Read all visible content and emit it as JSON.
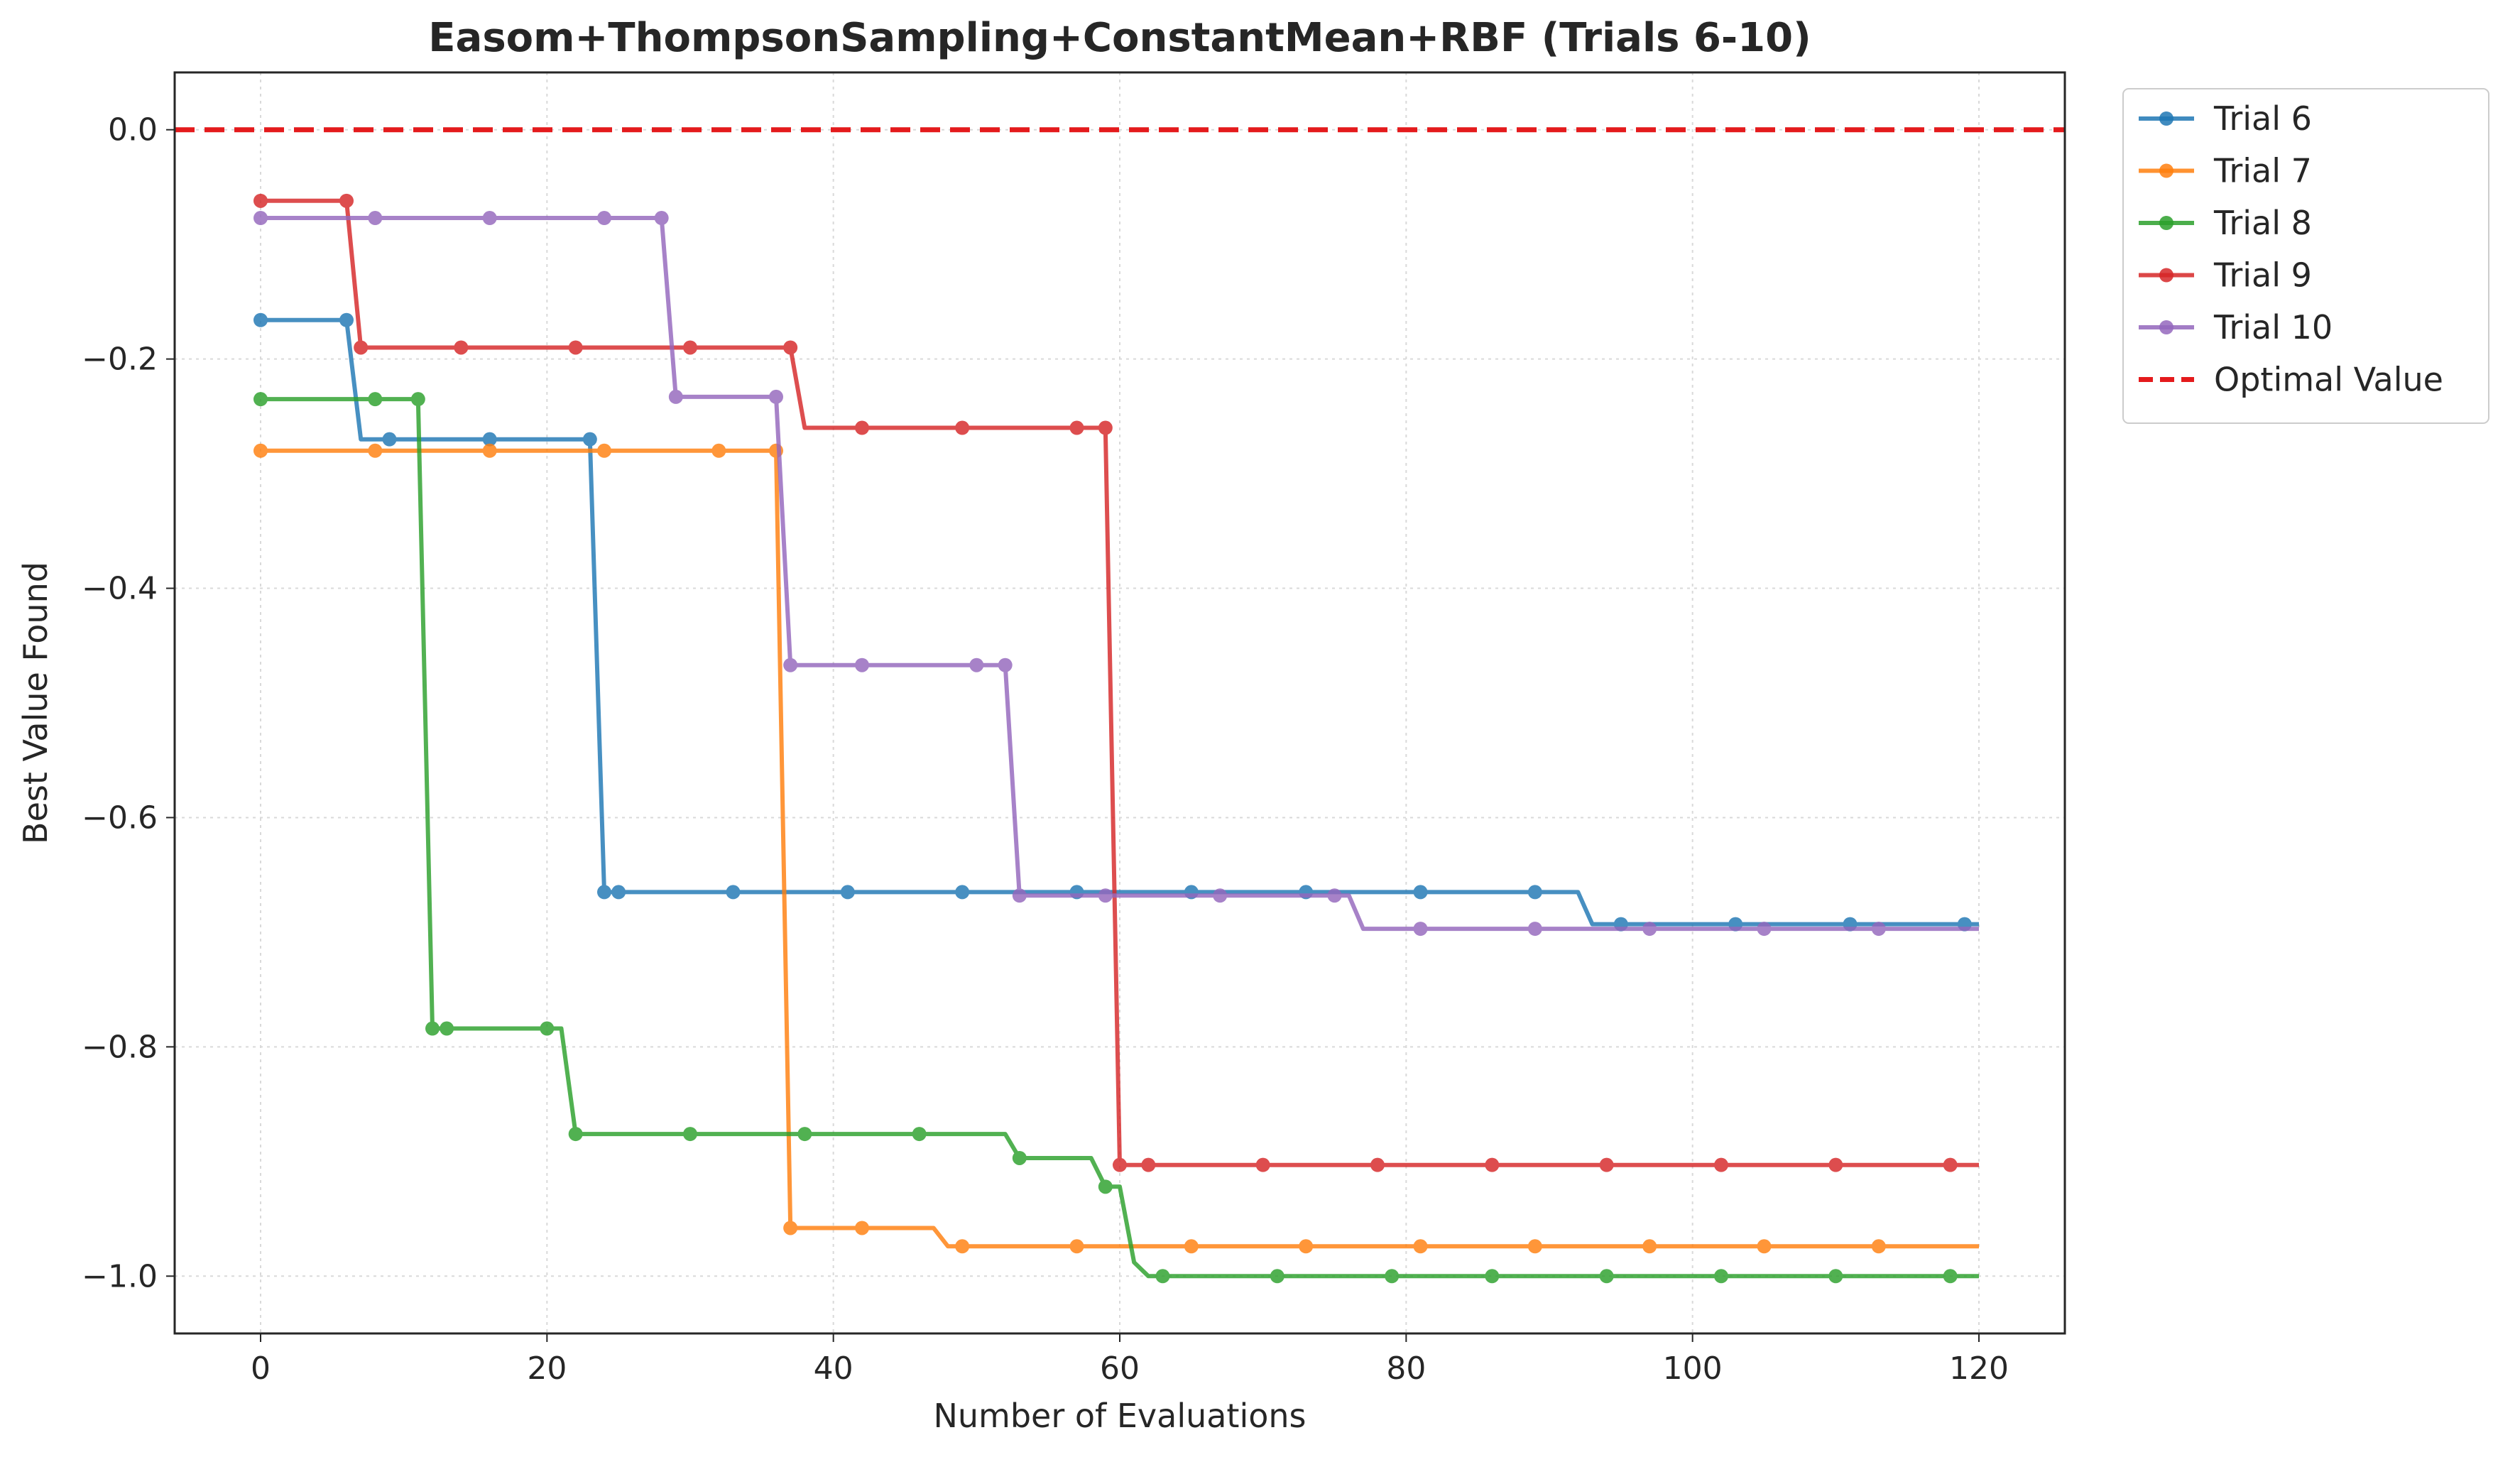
{
  "chart_data": {
    "type": "line",
    "title": "Easom+ThompsonSampling+ConstantMean+RBF (Trials 6-10)",
    "xlabel": "Number of Evaluations",
    "ylabel": "Best Value Found",
    "xlim": [
      -6,
      126
    ],
    "ylim": [
      -1.05,
      0.05
    ],
    "xticks": [
      0,
      20,
      40,
      60,
      80,
      100,
      120
    ],
    "xtick_labels": [
      "0",
      "20",
      "40",
      "60",
      "80",
      "100",
      "120"
    ],
    "yticks": [
      0.0,
      -0.2,
      -0.4,
      -0.6,
      -0.8,
      -1.0
    ],
    "ytick_labels": [
      "0.0",
      "−0.2",
      "−0.4",
      "−0.6",
      "−0.8",
      "−1.0"
    ],
    "grid": true,
    "legend_position": "outside-top-right",
    "reference_line": {
      "name": "Optimal Value",
      "y": 0.0,
      "color": "#e41a1c",
      "style": "dashed"
    },
    "series": [
      {
        "name": "Trial 6",
        "color": "#1f77b4",
        "steps": [
          [
            0,
            -0.166
          ],
          [
            6,
            -0.166
          ],
          [
            7,
            -0.27
          ],
          [
            23,
            -0.27
          ],
          [
            24,
            -0.665
          ],
          [
            92,
            -0.665
          ],
          [
            93,
            -0.693
          ],
          [
            120,
            -0.693
          ]
        ],
        "markers": [
          [
            0,
            -0.166
          ],
          [
            6,
            -0.166
          ],
          [
            9,
            -0.27
          ],
          [
            16,
            -0.27
          ],
          [
            23,
            -0.27
          ],
          [
            24,
            -0.665
          ],
          [
            25,
            -0.665
          ],
          [
            33,
            -0.665
          ],
          [
            41,
            -0.665
          ],
          [
            49,
            -0.665
          ],
          [
            57,
            -0.665
          ],
          [
            65,
            -0.665
          ],
          [
            73,
            -0.665
          ],
          [
            81,
            -0.665
          ],
          [
            89,
            -0.665
          ],
          [
            95,
            -0.693
          ],
          [
            103,
            -0.693
          ],
          [
            111,
            -0.693
          ],
          [
            119,
            -0.693
          ]
        ]
      },
      {
        "name": "Trial 7",
        "color": "#ff7f0e",
        "steps": [
          [
            0,
            -0.28
          ],
          [
            36,
            -0.28
          ],
          [
            37,
            -0.958
          ],
          [
            47,
            -0.958
          ],
          [
            48,
            -0.974
          ],
          [
            120,
            -0.974
          ]
        ],
        "markers": [
          [
            0,
            -0.28
          ],
          [
            8,
            -0.28
          ],
          [
            16,
            -0.28
          ],
          [
            24,
            -0.28
          ],
          [
            32,
            -0.28
          ],
          [
            36,
            -0.28
          ],
          [
            37,
            -0.958
          ],
          [
            42,
            -0.958
          ],
          [
            49,
            -0.974
          ],
          [
            57,
            -0.974
          ],
          [
            65,
            -0.974
          ],
          [
            73,
            -0.974
          ],
          [
            81,
            -0.974
          ],
          [
            89,
            -0.974
          ],
          [
            97,
            -0.974
          ],
          [
            105,
            -0.974
          ],
          [
            113,
            -0.974
          ]
        ]
      },
      {
        "name": "Trial 8",
        "color": "#2ca02c",
        "steps": [
          [
            0,
            -0.235
          ],
          [
            11,
            -0.235
          ],
          [
            12,
            -0.784
          ],
          [
            21,
            -0.784
          ],
          [
            22,
            -0.876
          ],
          [
            52,
            -0.876
          ],
          [
            53,
            -0.897
          ],
          [
            58,
            -0.897
          ],
          [
            59,
            -0.922
          ],
          [
            60,
            -0.922
          ],
          [
            61,
            -0.988
          ],
          [
            62,
            -1.0
          ],
          [
            120,
            -1.0
          ]
        ],
        "markers": [
          [
            0,
            -0.235
          ],
          [
            8,
            -0.235
          ],
          [
            11,
            -0.235
          ],
          [
            12,
            -0.784
          ],
          [
            13,
            -0.784
          ],
          [
            20,
            -0.784
          ],
          [
            22,
            -0.876
          ],
          [
            30,
            -0.876
          ],
          [
            38,
            -0.876
          ],
          [
            46,
            -0.876
          ],
          [
            53,
            -0.897
          ],
          [
            59,
            -0.922
          ],
          [
            63,
            -1.0
          ],
          [
            71,
            -1.0
          ],
          [
            79,
            -1.0
          ],
          [
            86,
            -1.0
          ],
          [
            94,
            -1.0
          ],
          [
            102,
            -1.0
          ],
          [
            110,
            -1.0
          ],
          [
            118,
            -1.0
          ]
        ]
      },
      {
        "name": "Trial 9",
        "color": "#d62728",
        "steps": [
          [
            0,
            -0.062
          ],
          [
            6,
            -0.062
          ],
          [
            7,
            -0.19
          ],
          [
            37,
            -0.19
          ],
          [
            38,
            -0.26
          ],
          [
            59,
            -0.26
          ],
          [
            60,
            -0.903
          ],
          [
            120,
            -0.903
          ]
        ],
        "markers": [
          [
            0,
            -0.062
          ],
          [
            6,
            -0.062
          ],
          [
            7,
            -0.19
          ],
          [
            14,
            -0.19
          ],
          [
            22,
            -0.19
          ],
          [
            30,
            -0.19
          ],
          [
            37,
            -0.19
          ],
          [
            42,
            -0.26
          ],
          [
            49,
            -0.26
          ],
          [
            57,
            -0.26
          ],
          [
            59,
            -0.26
          ],
          [
            60,
            -0.903
          ],
          [
            62,
            -0.903
          ],
          [
            70,
            -0.903
          ],
          [
            78,
            -0.903
          ],
          [
            86,
            -0.903
          ],
          [
            94,
            -0.903
          ],
          [
            102,
            -0.903
          ],
          [
            110,
            -0.903
          ],
          [
            118,
            -0.903
          ]
        ]
      },
      {
        "name": "Trial 10",
        "color": "#9467bd",
        "steps": [
          [
            0,
            -0.077
          ],
          [
            28,
            -0.077
          ],
          [
            29,
            -0.233
          ],
          [
            36,
            -0.233
          ],
          [
            37,
            -0.467
          ],
          [
            52,
            -0.467
          ],
          [
            53,
            -0.668
          ],
          [
            76,
            -0.668
          ],
          [
            77,
            -0.697
          ],
          [
            120,
            -0.697
          ]
        ],
        "markers": [
          [
            0,
            -0.077
          ],
          [
            8,
            -0.077
          ],
          [
            16,
            -0.077
          ],
          [
            24,
            -0.077
          ],
          [
            28,
            -0.077
          ],
          [
            29,
            -0.233
          ],
          [
            36,
            -0.233
          ],
          [
            37,
            -0.467
          ],
          [
            42,
            -0.467
          ],
          [
            50,
            -0.467
          ],
          [
            52,
            -0.467
          ],
          [
            53,
            -0.668
          ],
          [
            59,
            -0.668
          ],
          [
            67,
            -0.668
          ],
          [
            75,
            -0.668
          ],
          [
            81,
            -0.697
          ],
          [
            89,
            -0.697
          ],
          [
            97,
            -0.697
          ],
          [
            105,
            -0.697
          ],
          [
            113,
            -0.697
          ]
        ]
      }
    ]
  }
}
